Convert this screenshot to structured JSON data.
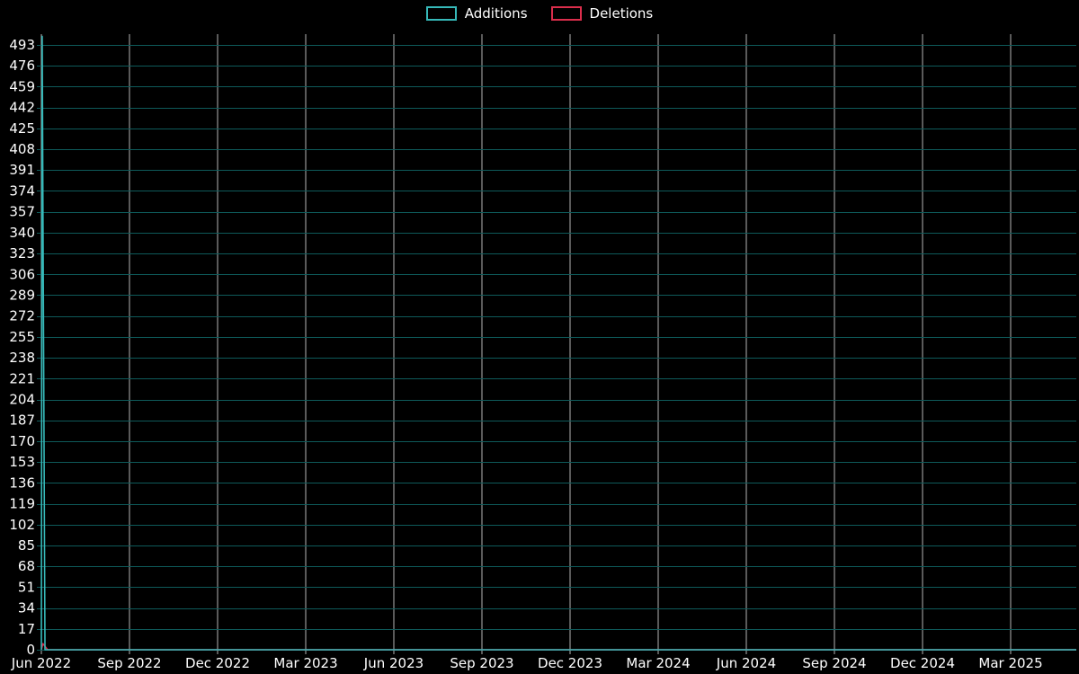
{
  "chart_data": {
    "type": "line",
    "title": "",
    "background": "#000000",
    "text_color": "#ffffff",
    "grid": {
      "horizontal_color": "#0e5a5a",
      "vertical_color": "#b5b5b5",
      "grid_on": true
    },
    "legend": [
      {
        "label": "Additions",
        "color": "#36b9b9"
      },
      {
        "label": "Deletions",
        "color": "#dc2e4c"
      }
    ],
    "legend_position": "top-center",
    "x_tick_labels": [
      "Jun 2022",
      "Sep 2022",
      "Dec 2022",
      "Mar 2023",
      "Jun 2023",
      "Sep 2023",
      "Dec 2023",
      "Mar 2024",
      "Jun 2024",
      "Sep 2024",
      "Dec 2024",
      "Mar 2025"
    ],
    "y_tick_labels": [
      0,
      17,
      34,
      51,
      68,
      85,
      102,
      119,
      136,
      153,
      170,
      187,
      204,
      221,
      238,
      255,
      272,
      289,
      306,
      323,
      340,
      357,
      374,
      391,
      408,
      425,
      442,
      459,
      476,
      493
    ],
    "ylim": [
      0,
      502
    ],
    "series": [
      {
        "name": "Additions",
        "color": "#36b9b9",
        "description": "Single spike of ~500 additions at Jun 2022, zero for all later weeks",
        "points": [
          {
            "x_frac": 0.0,
            "y": 0
          },
          {
            "x_frac": 0.0008,
            "y": 500
          },
          {
            "x_frac": 0.0035,
            "y": 0
          },
          {
            "x_frac": 1.0,
            "y": 0
          }
        ]
      },
      {
        "name": "Deletions",
        "color": "#dc2e4c",
        "description": "Small spike of ~5 deletions at Jun 2022, zero for all later weeks",
        "points": [
          {
            "x_frac": 0.0,
            "y": 0
          },
          {
            "x_frac": 0.0015,
            "y": 5
          },
          {
            "x_frac": 0.006,
            "y": 0
          },
          {
            "x_frac": 1.0,
            "y": 0
          }
        ]
      }
    ]
  }
}
